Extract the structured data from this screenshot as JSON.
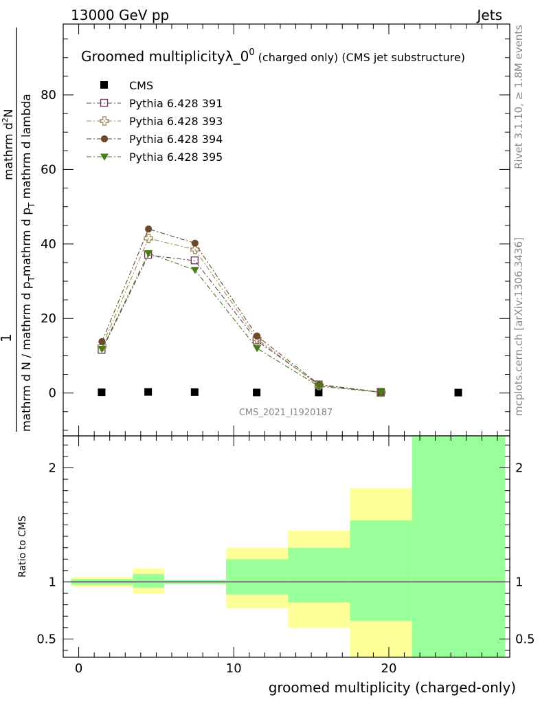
{
  "header": {
    "left": "13000 GeV pp",
    "right": "Jets"
  },
  "side_labels": {
    "rivet": "Rivet 3.1.10, ≥ 1.8M events",
    "mcplots": "mcplots.cern.ch [arXiv:1306.3436]"
  },
  "chart_data": {
    "type": "scatter",
    "title_main": "Groomed multiplicityλ_0",
    "title_sup": "0",
    "title_suffix": " (charged only) (CMS jet substructure)",
    "watermark": "CMS_2021_I1920187",
    "xlabel": "groomed multiplicity (charged-only)",
    "ylabel_top": {
      "numerator": "1",
      "main": "mathrm d N / mathrm d p",
      "sub1": "T",
      "mid": "mathrm d p",
      "sub2": "T",
      "tail": "mathrm d lambda",
      "right_num": "mathrm d",
      "right_sup": "2",
      "right_N": "N"
    },
    "ylabel_ratio": "Ratio to CMS",
    "xlim": [
      -1,
      27.8
    ],
    "ylim_top": [
      -11.5,
      99
    ],
    "ylim_ratio": [
      0.34,
      2.28
    ],
    "x_ticks_major": [
      0,
      10,
      20
    ],
    "y_ticks_top": [
      0,
      20,
      40,
      60,
      80
    ],
    "y_ticks_ratio": [
      {
        "v": 0.5,
        "label": "0.5"
      },
      {
        "v": 1,
        "label": "1"
      },
      {
        "v": 2,
        "label": "2"
      }
    ],
    "x": [
      1.5,
      4.5,
      7.5,
      11.5,
      15.5,
      19.5,
      24.5
    ],
    "series": [
      {
        "name": "CMS",
        "marker": "square-filled",
        "color": "#000000",
        "line": false,
        "values": [
          0.1,
          0.2,
          0.15,
          0.05,
          0.05,
          0.02,
          0.02
        ]
      },
      {
        "name": "Pythia 6.428 391",
        "marker": "square-open",
        "color": "#6e3f5c",
        "line": true,
        "values": [
          11.5,
          37.0,
          35.5,
          14.0,
          2.2,
          0.2,
          null
        ]
      },
      {
        "name": "Pythia 6.428 393",
        "marker": "cross-open",
        "color": "#9a8a5a",
        "line": true,
        "values": [
          12.5,
          41.5,
          38.5,
          14.5,
          2.0,
          0.2,
          null
        ]
      },
      {
        "name": "Pythia 6.428 394",
        "marker": "circle-filled",
        "color": "#6b4a2e",
        "line": true,
        "values": [
          13.8,
          44.0,
          40.2,
          15.3,
          2.3,
          0.2,
          null
        ]
      },
      {
        "name": "Pythia 6.428 395",
        "marker": "triangle-down-filled",
        "color": "#4a7a1a",
        "line": true,
        "values": [
          11.8,
          37.5,
          33.0,
          12.0,
          1.8,
          0.2,
          null
        ]
      }
    ],
    "ratio_bands": [
      {
        "x0": -0.5,
        "x1": 3.5,
        "yellow": [
          0.96,
          1.04
        ],
        "green": [
          0.975,
          1.025
        ]
      },
      {
        "x0": 3.5,
        "x1": 5.5,
        "yellow": [
          0.9,
          1.12
        ],
        "green": [
          0.95,
          1.07
        ]
      },
      {
        "x0": 5.5,
        "x1": 9.5,
        "yellow": [
          0.98,
          1.02
        ],
        "green": [
          0.985,
          1.015
        ]
      },
      {
        "x0": 9.5,
        "x1": 13.5,
        "yellow": [
          0.77,
          1.3
        ],
        "green": [
          0.89,
          1.2
        ]
      },
      {
        "x0": 13.5,
        "x1": 17.5,
        "yellow": [
          0.6,
          1.45
        ],
        "green": [
          0.82,
          1.3
        ]
      },
      {
        "x0": 17.5,
        "x1": 21.5,
        "yellow": [
          0.3,
          1.82
        ],
        "green": [
          0.66,
          1.54
        ]
      },
      {
        "x0": 21.5,
        "x1": 27.5,
        "yellow": [
          0.3,
          2.4
        ],
        "green": [
          0.3,
          2.4
        ]
      }
    ],
    "colors": {
      "yellow": "#ffff99",
      "green": "#99ff99"
    }
  }
}
